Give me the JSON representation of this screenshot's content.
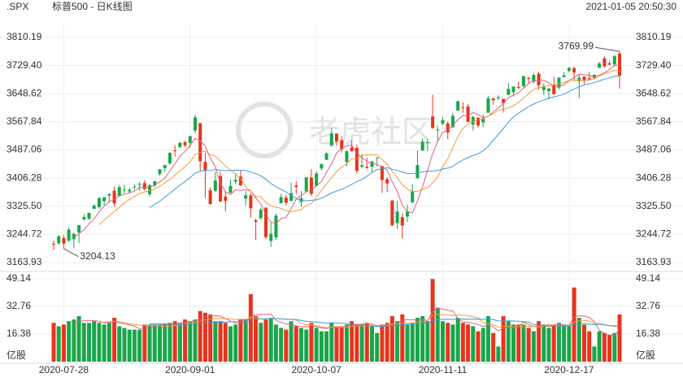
{
  "header": {
    "symbol": ".SPX",
    "title": "标普500 - 日K线图",
    "datetime": "2021-01-05 20:50:30"
  },
  "watermark": "老虎社区",
  "chart_data": {
    "type": "candlestick",
    "up_color": "#1aa64a",
    "down_color": "#e8341c",
    "ylim": [
      3163.93,
      3810.19
    ],
    "yticks": [
      3163.93,
      3244.72,
      {
        "value": 3325.5,
        "label": "3325.50"
      },
      3406.28,
      3487.06,
      3567.84,
      3648.62,
      {
        "value": 3729.4,
        "label": "3729.40"
      },
      3810.19
    ],
    "volume_ylim": [
      0,
      49.14
    ],
    "volume_yticks": [
      16.38,
      32.76,
      49.14
    ],
    "volume_unit": "亿股",
    "grid": true,
    "categories": [
      null,
      null,
      "2020-07-28",
      null,
      null,
      null,
      null,
      null,
      null,
      null,
      null,
      null,
      null,
      null,
      null,
      null,
      null,
      null,
      null,
      null,
      null,
      null,
      null,
      null,
      null,
      null,
      null,
      "2020-09-01",
      null,
      null,
      null,
      null,
      null,
      null,
      null,
      null,
      null,
      null,
      null,
      null,
      null,
      null,
      null,
      null,
      null,
      null,
      null,
      null,
      null,
      null,
      null,
      null,
      "2020-10-07",
      null,
      null,
      null,
      null,
      null,
      null,
      null,
      null,
      null,
      null,
      null,
      null,
      null,
      null,
      null,
      null,
      null,
      null,
      null,
      null,
      null,
      null,
      null,
      null,
      "2020-11-11",
      null,
      null,
      null,
      null,
      null,
      null,
      null,
      null,
      null,
      null,
      null,
      null,
      null,
      null,
      null,
      null,
      null,
      null,
      null,
      null,
      null,
      null,
      null,
      null,
      "2020-12-17",
      null,
      null,
      null,
      null,
      null,
      null,
      null,
      null,
      null,
      null
    ],
    "ohlc": [
      [
        3218,
        3227,
        3201,
        3215.63
      ],
      [
        3219,
        3242,
        3215,
        3239.41
      ],
      [
        3234,
        3243,
        3204.13,
        3218.44
      ],
      [
        3227,
        3264,
        3222,
        3258.44
      ],
      [
        3231,
        3250,
        3205,
        3246.22
      ],
      [
        3250,
        3272,
        3220,
        3271.12
      ],
      [
        3288,
        3303,
        3284,
        3294.61
      ],
      [
        3289,
        3307,
        3287,
        3306.51
      ],
      [
        3318,
        3330,
        3318,
        3327.77
      ],
      [
        3323,
        3351,
        3318,
        3349.16
      ],
      [
        3340,
        3352,
        3328,
        3351.28
      ],
      [
        3356,
        3363,
        3335,
        3360.47
      ],
      [
        3370,
        3382,
        3324,
        3333.69
      ],
      [
        3355,
        3387,
        3355,
        3380.35
      ],
      [
        3372,
        3387,
        3363,
        3373.43
      ],
      [
        3368,
        3378,
        3361,
        3372.85
      ],
      [
        3380,
        3388,
        3373,
        3381.99
      ],
      [
        3387,
        3395,
        3370,
        3389.78
      ],
      [
        3392,
        3400,
        3371,
        3374.85
      ],
      [
        3360,
        3390,
        3354,
        3385.51
      ],
      [
        3386,
        3399,
        3380,
        3397.16
      ],
      [
        3418,
        3432,
        3413,
        3431.28
      ],
      [
        3435,
        3444,
        3425,
        3443.62
      ],
      [
        3449,
        3481,
        3444,
        3478.73
      ],
      [
        3486,
        3501,
        3468,
        3484.55
      ],
      [
        3495,
        3509,
        3494,
        3508.01
      ],
      [
        3509,
        3514,
        3495,
        3500.31
      ],
      [
        3507,
        3528,
        3494,
        3526.65
      ],
      [
        3543,
        3588,
        3535,
        3580.84
      ],
      [
        3564,
        3564,
        3427,
        3455.06
      ],
      [
        3453,
        3479,
        3349,
        3426.96
      ],
      [
        3371,
        3379,
        3329,
        3331.84
      ],
      [
        3370,
        3425,
        3366,
        3398.96
      ],
      [
        3412,
        3425,
        3338,
        3339.19
      ],
      [
        3353,
        3368,
        3310,
        3340.97
      ],
      [
        3364,
        3402,
        3364,
        3383.54
      ],
      [
        3396,
        3419,
        3389,
        3401.2
      ],
      [
        3411,
        3428,
        3384,
        3385.49
      ],
      [
        3347,
        3370,
        3328,
        3357.01
      ],
      [
        3357,
        3363,
        3293,
        3319.47
      ],
      [
        3285,
        3290,
        3229,
        3281.06
      ],
      [
        3291,
        3321,
        3287,
        3315.57
      ],
      [
        3321,
        3323,
        3232,
        3236.92
      ],
      [
        3226,
        3278,
        3209,
        3246.59
      ],
      [
        3236,
        3306,
        3229,
        3298.46
      ],
      [
        3334,
        3361,
        3334,
        3351.6
      ],
      [
        3350,
        3358,
        3328,
        3335.47
      ],
      [
        3341,
        3393,
        3340,
        3363
      ],
      [
        3385,
        3397,
        3361,
        3380.8
      ],
      [
        3338,
        3369,
        3323,
        3348.42
      ],
      [
        3368,
        3409,
        3368,
        3408.6
      ],
      [
        3408,
        3432,
        3354,
        3360.97
      ],
      [
        3384,
        3426,
        3384,
        3419.44
      ],
      [
        3434,
        3447,
        3428,
        3446.83
      ],
      [
        3459,
        3482,
        3458,
        3477.14
      ],
      [
        3500,
        3550,
        3496,
        3534.22
      ],
      [
        3534,
        3534,
        3500,
        3511.93
      ],
      [
        3515,
        3527,
        3480,
        3488.67
      ],
      [
        3453,
        3485,
        3440,
        3483.34
      ],
      [
        3494,
        3515,
        3482,
        3483.81
      ],
      [
        3493,
        3502,
        3419,
        3426.92
      ],
      [
        3439,
        3476,
        3435,
        3443.12
      ],
      [
        3439,
        3464,
        3433,
        3435.56
      ],
      [
        3439,
        3456,
        3424,
        3453.49
      ],
      [
        3464,
        3466,
        3440,
        3465.39
      ],
      [
        3441,
        3441,
        3364,
        3400.97
      ],
      [
        3403,
        3409,
        3367,
        3390.68
      ],
      [
        3342,
        3342,
        3268,
        3271.03
      ],
      [
        3277,
        3341,
        3259,
        3310.11
      ],
      [
        3294,
        3305,
        3233,
        3269.96
      ],
      [
        3296,
        3330,
        3280,
        3310.24
      ],
      [
        3336,
        3389,
        3336,
        3369.16
      ],
      [
        3406,
        3486,
        3405,
        3443.44
      ],
      [
        3485,
        3521,
        3485,
        3510.45
      ],
      [
        3509,
        3521,
        3484,
        3509.44
      ],
      [
        3583,
        3645,
        3547,
        3550.5
      ],
      [
        3544,
        3557,
        3511,
        3545.53
      ],
      [
        3563,
        3581,
        3557,
        3572.66
      ],
      [
        3563,
        3569,
        3518,
        3537.01
      ],
      [
        3552,
        3593,
        3552,
        3585.15
      ],
      [
        3600,
        3628,
        3600,
        3626.91
      ],
      [
        3610,
        3624,
        3594,
        3609.53
      ],
      [
        3612,
        3619,
        3567,
        3567.79
      ],
      [
        3560,
        3585,
        3543,
        3581.87
      ],
      [
        3579,
        3582,
        3551,
        3557.54
      ],
      [
        3566,
        3589,
        3552,
        3577.59
      ],
      [
        3594,
        3642,
        3594,
        3635.41
      ],
      [
        3635,
        3635,
        3617,
        3629.65
      ],
      [
        3635,
        3644,
        3630,
        3638.35
      ],
      [
        3634,
        3634,
        3594,
        3621.63
      ],
      [
        3645,
        3679,
        3645,
        3662.45
      ],
      [
        3653,
        3669,
        3640,
        3669.01
      ],
      [
        3668,
        3683,
        3660,
        3666.72
      ],
      [
        3670,
        3699,
        3664,
        3699.12
      ],
      [
        3694,
        3697,
        3679,
        3691.96
      ],
      [
        3683,
        3708,
        3678,
        3702.25
      ],
      [
        3706,
        3712,
        3660,
        3672.82
      ],
      [
        3659,
        3678,
        3645,
        3668.1
      ],
      [
        3656,
        3665,
        3633,
        3663.46
      ],
      [
        3675,
        3697,
        3645,
        3647.49
      ],
      [
        3666,
        3695,
        3660,
        3694.62
      ],
      [
        3696,
        3711,
        3695,
        3701.17
      ],
      [
        3714,
        3725,
        3710,
        3722.48
      ],
      [
        3722,
        3726,
        3685,
        3709.41
      ],
      [
        3684,
        3703,
        3636,
        3694.92
      ],
      [
        3698,
        3698,
        3676,
        3687.26
      ],
      [
        3693,
        3711,
        3689,
        3690.01
      ],
      [
        3694,
        3703,
        3690,
        3703.06
      ],
      [
        3723,
        3740,
        3723,
        3735.36
      ],
      [
        3750,
        3756,
        3723,
        3727.04
      ],
      [
        3736,
        3744,
        3730,
        3732.04
      ],
      [
        3733,
        3760,
        3726,
        3756.07
      ],
      [
        3764,
        3769.99,
        3662.71,
        3700.65
      ]
    ],
    "volume": [
      23,
      21,
      22,
      24,
      25,
      27,
      23,
      23,
      24,
      23,
      22,
      23,
      26,
      21,
      20,
      19,
      19,
      19,
      22,
      22,
      22,
      22,
      22,
      23,
      24,
      23,
      25,
      24,
      25,
      30,
      29,
      28,
      24,
      24,
      23,
      21,
      22,
      25,
      25,
      40,
      27,
      23,
      25,
      26,
      22,
      20,
      19,
      24,
      21,
      20,
      19,
      23,
      20,
      18,
      18,
      23,
      21,
      21,
      22,
      24,
      22,
      22,
      23,
      21,
      17,
      22,
      23,
      27,
      24,
      28,
      22,
      23,
      26,
      27,
      24,
      49,
      32,
      24,
      23,
      22,
      26,
      23,
      22,
      21,
      18,
      20,
      27,
      17,
      9,
      27,
      24,
      22,
      22,
      22,
      20,
      18,
      24,
      22,
      20,
      22,
      23,
      22,
      21,
      44,
      26,
      22,
      18,
      9,
      18,
      17,
      16,
      17,
      28
    ],
    "high_label_index": 112,
    "low_label_index": 2
  }
}
